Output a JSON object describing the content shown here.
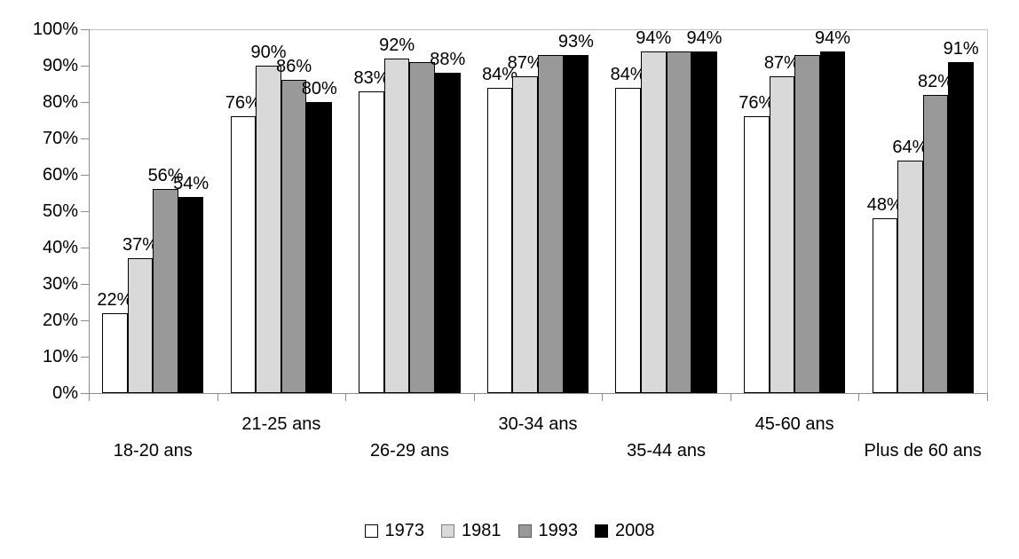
{
  "chart_data": {
    "type": "bar",
    "title": "",
    "categories": [
      "18-20 ans",
      "21-25 ans",
      "26-29 ans",
      "30-34 ans",
      "35-44 ans",
      "45-60 ans",
      "Plus de 60 ans"
    ],
    "series": [
      {
        "name": "1973",
        "color": "#ffffff",
        "values": [
          22,
          76,
          83,
          84,
          84,
          76,
          48
        ],
        "labels": [
          "22%",
          "76%",
          "83%",
          "84%",
          "84%",
          "76%",
          "48%"
        ]
      },
      {
        "name": "1981",
        "color": "#d9d9d9",
        "values": [
          37,
          90,
          92,
          87,
          94,
          87,
          64
        ],
        "labels": [
          "37%",
          "90%",
          "92%",
          "87%",
          "94%",
          "87%",
          "64%"
        ]
      },
      {
        "name": "1993",
        "color": "#999999",
        "values": [
          56,
          86,
          91,
          93,
          94,
          93,
          82
        ],
        "labels": [
          "56%",
          "86%",
          "",
          "",
          "",
          "",
          "82%"
        ]
      },
      {
        "name": "2008",
        "color": "#000000",
        "values": [
          54,
          80,
          88,
          93,
          94,
          94,
          91
        ],
        "labels": [
          "54%",
          "80%",
          "88%",
          "93%",
          "94%",
          "94%",
          "91%"
        ]
      }
    ],
    "ylim": [
      0,
      100
    ],
    "ytick_step": 10,
    "ytick_labels": [
      "0%",
      "10%",
      "20%",
      "30%",
      "40%",
      "50%",
      "60%",
      "70%",
      "80%",
      "90%",
      "100%"
    ],
    "grid": "ticks-only",
    "legend": {
      "position": "bottom",
      "entries": [
        "1973",
        "1981",
        "1993",
        "2008"
      ]
    }
  }
}
